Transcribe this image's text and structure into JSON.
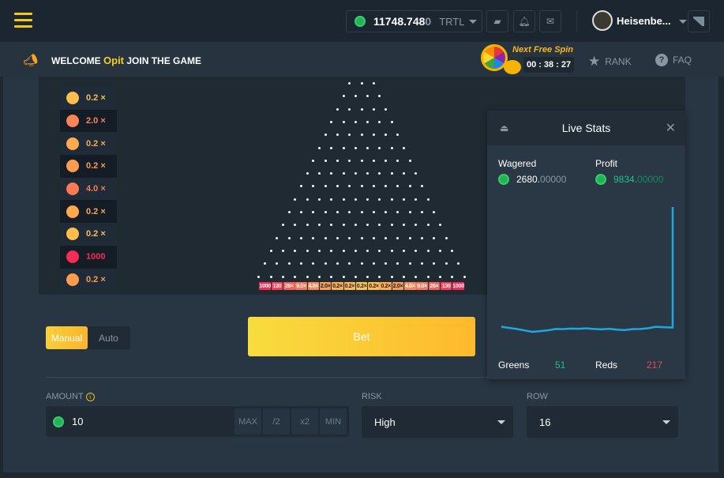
{
  "header": {
    "balance_main": "11748.748",
    "balance_dim": "0",
    "currency": "TRTL",
    "username": "Heisenbe...",
    "icons": [
      "wallet-icon",
      "bell-icon",
      "mail-icon",
      "chat-icon"
    ]
  },
  "subbar": {
    "welcome_pre": "WELCOME",
    "welcome_name": "Opit",
    "welcome_post": "JOIN THE GAME",
    "free_spin_label": "Next Free Spin",
    "timer": [
      "00",
      "38",
      "27"
    ],
    "rank": "RANK",
    "faq": "FAQ"
  },
  "history": [
    {
      "v": "0.2",
      "x": "×",
      "c": "#fdbd4f"
    },
    {
      "v": "2.0",
      "x": "×",
      "c": "#f98557"
    },
    {
      "v": "0.2",
      "x": "×",
      "c": "#fdab4f"
    },
    {
      "v": "0.2",
      "x": "×",
      "c": "#fd9c50"
    },
    {
      "v": "4.0",
      "x": "×",
      "c": "#f97a55"
    },
    {
      "v": "0.2",
      "x": "×",
      "c": "#fda84f"
    },
    {
      "v": "0.2",
      "x": "×",
      "c": "#fdbd4f"
    },
    {
      "v": "1000",
      "x": "",
      "c": "#f32d56"
    },
    {
      "v": "0.2",
      "x": "×",
      "c": "#fd9c50"
    }
  ],
  "board": {
    "rows": 16,
    "slots": [
      "1000",
      "130",
      "26×",
      "9.0×",
      "4.0×",
      "2.0×",
      "0.2×",
      "0.2×",
      "0.2×",
      "0.2×",
      "0.2×",
      "2.0×",
      "4.0×",
      "9.0×",
      "26×",
      "130",
      "1000"
    ]
  },
  "controls": {
    "manual": "Manual",
    "auto": "Auto",
    "bet": "Bet",
    "amount_label": "AMOUNT",
    "amount": "10",
    "max": "MAX",
    "half": "/2",
    "double": "x2",
    "min": "MIN",
    "risk_label": "RISK",
    "risk": "High",
    "row_label": "ROW",
    "row": "16"
  },
  "live_stats": {
    "title": "Live Stats",
    "wagered_label": "Wagered",
    "wagered_main": "2680.",
    "wagered_dim": "00000",
    "profit_label": "Profit",
    "profit_main": "9834.",
    "profit_dim": "00000",
    "greens_label": "Greens",
    "greens": "51",
    "reds_label": "Reds",
    "reds": "217",
    "line_color": "#1fa8e0",
    "profit_series": [
      -40,
      -55,
      -70,
      -90,
      -110,
      -100,
      -90,
      -70,
      -72,
      -65,
      -68,
      -62,
      -70,
      -75,
      -68,
      -80,
      -85,
      -72,
      -70,
      -60,
      -40,
      -45,
      -50,
      9834
    ]
  }
}
